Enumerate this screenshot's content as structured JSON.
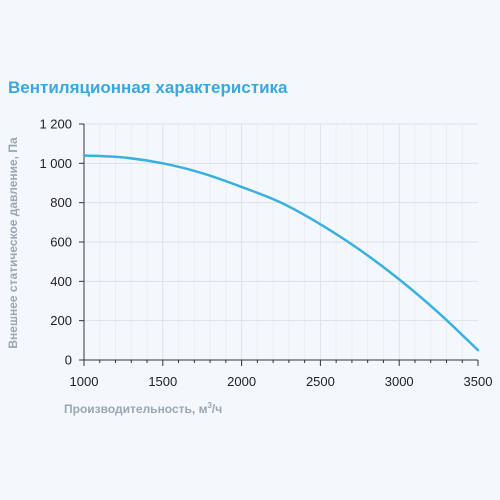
{
  "chart_data": {
    "type": "line",
    "title": "Вентиляционная характеристика",
    "xlabel": "Производительность, м",
    "xlabel_sup": "3",
    "xlabel_suffix": "/ч",
    "ylabel": "Внешнее статическое давление, Па",
    "xlim": [
      1000,
      3500
    ],
    "ylim": [
      0,
      1200
    ],
    "x_ticks": [
      1000,
      1500,
      2000,
      2500,
      3000,
      3500
    ],
    "y_ticks": [
      0,
      200,
      400,
      600,
      800,
      1000,
      1200
    ],
    "x_tick_labels": [
      "1000",
      "1500",
      "2000",
      "2500",
      "3000",
      "3500"
    ],
    "y_tick_labels": [
      "0",
      "200",
      "400",
      "600",
      "800",
      "1 000",
      "1 200"
    ],
    "grid": true,
    "series": [
      {
        "color": "#3ab0e0",
        "points": [
          [
            1000,
            1040
          ],
          [
            1250,
            1030
          ],
          [
            1500,
            1000
          ],
          [
            1750,
            950
          ],
          [
            2000,
            880
          ],
          [
            2250,
            800
          ],
          [
            2500,
            690
          ],
          [
            2750,
            560
          ],
          [
            3000,
            410
          ],
          [
            3250,
            240
          ],
          [
            3500,
            50
          ]
        ]
      }
    ]
  }
}
